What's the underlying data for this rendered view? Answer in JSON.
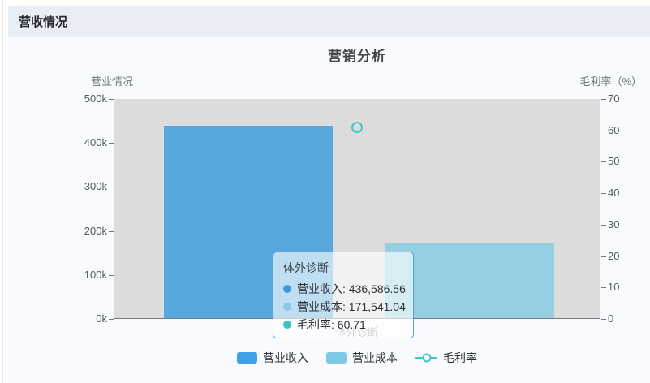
{
  "page": {
    "panel_title": "营收情况"
  },
  "chart_data": {
    "type": "bar+line",
    "title": "营销分析",
    "categories": [
      "体外诊断"
    ],
    "series": [
      {
        "name": "营业收入",
        "type": "bar",
        "axis": "left",
        "values": [
          436586.56
        ],
        "color": "#58a8dd",
        "legend_color": "#3da0e9"
      },
      {
        "name": "营业成本",
        "type": "bar",
        "axis": "left",
        "values": [
          171541.04
        ],
        "color": "#95cfe1",
        "legend_color": "#7fc9e8"
      },
      {
        "name": "毛利率",
        "type": "line",
        "axis": "right",
        "values": [
          60.71
        ],
        "color": "#3ec6c6",
        "marker": "hollow-circle"
      }
    ],
    "left_axis": {
      "name": "营业情况",
      "min": 0,
      "max": 500000,
      "tick_labels": [
        "500k",
        "400k",
        "300k",
        "200k",
        "100k",
        "0k"
      ]
    },
    "right_axis": {
      "name": "毛利率（%）",
      "min": 0,
      "max": 70,
      "tick_labels": [
        "70",
        "60",
        "50",
        "40",
        "30",
        "20",
        "10",
        "0"
      ]
    },
    "x_axis": {
      "labels": [
        "体外诊断"
      ]
    },
    "legend": {
      "position": "bottom",
      "items": [
        "营业收入",
        "营业成本",
        "毛利率"
      ]
    },
    "grid_lines": false,
    "plot_background": "#dcdcdc"
  },
  "tooltip": {
    "title": "体外诊断",
    "sep": ": ",
    "rows": [
      {
        "label": "营业收入",
        "value": "436,586.56",
        "color": "#3b9cdc"
      },
      {
        "label": "营业成本",
        "value": "171,541.04",
        "color": "#8bc7e8"
      },
      {
        "label": "毛利率",
        "value": "60.71",
        "color": "#38c4c4"
      }
    ]
  }
}
